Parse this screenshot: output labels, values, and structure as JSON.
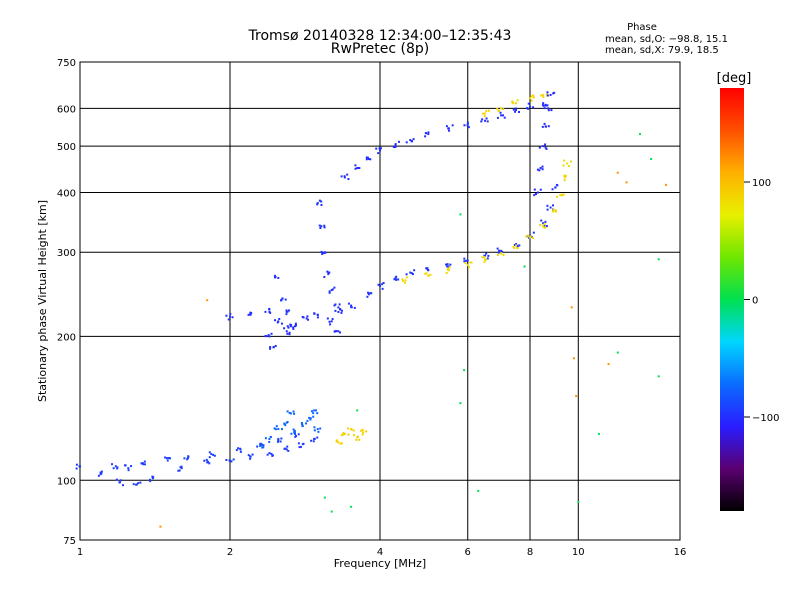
{
  "header": {
    "title": "Tromsø 20140328 12:34:00–12:35:43",
    "subtitle": "RwPretec (8p)",
    "phase_box": {
      "heading": "Phase",
      "line_o": "mean, sd,O: −98.8, 15.1",
      "line_x": "mean, sd,X: 79.9, 18.5"
    }
  },
  "colorbar": {
    "unit_label": "[deg]",
    "ticks": [
      {
        "value": 100,
        "label": "100"
      },
      {
        "value": 0,
        "label": "0"
      },
      {
        "value": -100,
        "label": "−100"
      }
    ],
    "range": [
      -180,
      180
    ],
    "colors": [
      "#000000",
      "#5a0070",
      "#2a1cff",
      "#0a6cff",
      "#00d6ff",
      "#00e050",
      "#6fe600",
      "#e8f000",
      "#ffb000",
      "#ff5000",
      "#ff0000"
    ]
  },
  "chart_data": {
    "type": "scatter",
    "xlabel": "Frequency [MHz]",
    "ylabel": "Stationary phase Virtual Height [km]",
    "xscale": "log",
    "yscale": "log",
    "xlim": [
      1,
      16
    ],
    "ylim": [
      75,
      750
    ],
    "xticks": [
      {
        "value": 1,
        "label": "1"
      },
      {
        "value": 2,
        "label": "2"
      },
      {
        "value": 4,
        "label": "4"
      },
      {
        "value": 6,
        "label": "6"
      },
      {
        "value": 8,
        "label": "8"
      },
      {
        "value": 10,
        "label": "10"
      },
      {
        "value": 16,
        "label": "16"
      }
    ],
    "yticks": [
      {
        "value": 75,
        "label": "75"
      },
      {
        "value": 100,
        "label": "100"
      },
      {
        "value": 200,
        "label": "200"
      },
      {
        "value": 300,
        "label": "300"
      },
      {
        "value": 400,
        "label": "400"
      },
      {
        "value": 500,
        "label": "500"
      },
      {
        "value": 600,
        "label": "600"
      },
      {
        "value": 750,
        "label": "750"
      }
    ],
    "grid": true,
    "colorbar": "right",
    "point_groups": [
      {
        "kind": "trace",
        "phase": -95,
        "points": [
          [
            1.0,
            107
          ],
          [
            1.1,
            103
          ],
          [
            1.2,
            99
          ],
          [
            1.3,
            98
          ],
          [
            1.4,
            101
          ],
          [
            1.6,
            106
          ],
          [
            1.8,
            109
          ],
          [
            2.0,
            110
          ],
          [
            2.2,
            112
          ],
          [
            2.4,
            114
          ],
          [
            2.6,
            116
          ],
          [
            2.8,
            119
          ],
          [
            2.95,
            122
          ]
        ]
      },
      {
        "kind": "trace",
        "phase": -92,
        "points": [
          [
            1.18,
            107
          ],
          [
            1.25,
            106
          ],
          [
            1.35,
            108
          ],
          [
            1.5,
            110
          ],
          [
            1.65,
            112
          ],
          [
            1.85,
            113
          ],
          [
            2.1,
            116
          ],
          [
            2.3,
            119
          ],
          [
            2.5,
            122
          ],
          [
            2.7,
            125
          ]
        ]
      },
      {
        "kind": "cluster",
        "phase": -75,
        "points": [
          [
            2.3,
            118
          ],
          [
            2.4,
            122
          ],
          [
            2.5,
            128
          ],
          [
            2.6,
            132
          ],
          [
            2.65,
            138
          ],
          [
            2.7,
            126
          ],
          [
            2.8,
            130
          ],
          [
            2.9,
            134
          ],
          [
            2.95,
            140
          ],
          [
            3.0,
            128
          ]
        ]
      },
      {
        "kind": "cluster",
        "phase": 90,
        "points": [
          [
            3.3,
            120
          ],
          [
            3.4,
            125
          ],
          [
            3.5,
            128
          ],
          [
            3.6,
            123
          ],
          [
            3.7,
            126
          ]
        ]
      },
      {
        "kind": "trace",
        "phase": -100,
        "points": [
          [
            2.0,
            220
          ],
          [
            2.2,
            222
          ],
          [
            2.4,
            225
          ],
          [
            2.5,
            215
          ],
          [
            2.6,
            205
          ],
          [
            2.7,
            210
          ],
          [
            2.85,
            218
          ],
          [
            3.0,
            222
          ]
        ]
      },
      {
        "kind": "trace",
        "phase": -98,
        "points": [
          [
            2.5,
            265
          ],
          [
            2.55,
            240
          ],
          [
            2.6,
            225
          ],
          [
            2.65,
            210
          ],
          [
            2.4,
            200
          ],
          [
            2.45,
            190
          ]
        ]
      },
      {
        "kind": "trace",
        "phase": -100,
        "points": [
          [
            3.0,
            380
          ],
          [
            3.05,
            340
          ],
          [
            3.1,
            300
          ],
          [
            3.15,
            270
          ],
          [
            3.2,
            250
          ],
          [
            3.3,
            230
          ],
          [
            3.2,
            215
          ],
          [
            3.3,
            205
          ]
        ]
      },
      {
        "kind": "trace",
        "phase": -97,
        "points": [
          [
            3.3,
            225
          ],
          [
            3.5,
            232
          ],
          [
            3.8,
            245
          ],
          [
            4.0,
            255
          ],
          [
            4.3,
            265
          ],
          [
            4.6,
            272
          ],
          [
            5.0,
            275
          ],
          [
            5.5,
            280
          ],
          [
            6.0,
            288
          ],
          [
            6.5,
            295
          ],
          [
            7.0,
            302
          ],
          [
            7.5,
            312
          ],
          [
            8.0,
            325
          ],
          [
            8.5,
            345
          ],
          [
            8.8,
            372
          ],
          [
            9.0,
            410
          ]
        ]
      },
      {
        "kind": "trace",
        "phase": 85,
        "points": [
          [
            4.5,
            262
          ],
          [
            5.0,
            268
          ],
          [
            5.5,
            275
          ],
          [
            6.0,
            282
          ],
          [
            6.5,
            290
          ],
          [
            7.0,
            298
          ],
          [
            7.5,
            310
          ],
          [
            8.0,
            322
          ],
          [
            8.5,
            340
          ],
          [
            8.9,
            365
          ],
          [
            9.2,
            395
          ],
          [
            9.4,
            430
          ],
          [
            9.5,
            460
          ]
        ]
      },
      {
        "kind": "trace",
        "phase": -100,
        "points": [
          [
            3.4,
            430
          ],
          [
            3.6,
            450
          ],
          [
            3.8,
            470
          ],
          [
            4.0,
            490
          ],
          [
            4.3,
            505
          ],
          [
            4.6,
            515
          ],
          [
            5.0,
            530
          ],
          [
            5.5,
            545
          ],
          [
            6.0,
            555
          ],
          [
            6.5,
            565
          ],
          [
            7.0,
            580
          ],
          [
            7.5,
            595
          ],
          [
            8.0,
            605
          ],
          [
            8.5,
            615
          ]
        ]
      },
      {
        "kind": "trace",
        "phase": 88,
        "points": [
          [
            6.5,
            585
          ],
          [
            7.0,
            600
          ],
          [
            7.5,
            615
          ],
          [
            8.0,
            630
          ],
          [
            8.5,
            640
          ]
        ]
      },
      {
        "kind": "trace",
        "phase": -102,
        "points": [
          [
            8.3,
            400
          ],
          [
            8.4,
            450
          ],
          [
            8.5,
            500
          ],
          [
            8.6,
            550
          ],
          [
            8.7,
            600
          ],
          [
            8.8,
            640
          ]
        ]
      },
      {
        "kind": "scatter",
        "phase": 0,
        "points": [
          [
            5.8,
            360
          ],
          [
            5.8,
            145
          ],
          [
            5.9,
            170
          ],
          [
            6.3,
            95
          ],
          [
            7.8,
            280
          ],
          [
            10.0,
            90
          ],
          [
            12.0,
            185
          ],
          [
            13.3,
            530
          ],
          [
            14.0,
            470
          ],
          [
            14.5,
            290
          ],
          [
            14.5,
            165
          ],
          [
            11.0,
            125
          ],
          [
            3.6,
            140
          ],
          [
            3.5,
            88
          ],
          [
            3.1,
            92
          ],
          [
            3.2,
            86
          ]
        ]
      },
      {
        "kind": "scatter",
        "phase": 120,
        "points": [
          [
            1.45,
            80
          ],
          [
            1.8,
            238
          ],
          [
            9.7,
            230
          ],
          [
            9.8,
            180
          ],
          [
            9.9,
            150
          ],
          [
            12.0,
            440
          ],
          [
            12.5,
            420
          ],
          [
            15.0,
            415
          ],
          [
            11.5,
            175
          ]
        ]
      }
    ]
  }
}
